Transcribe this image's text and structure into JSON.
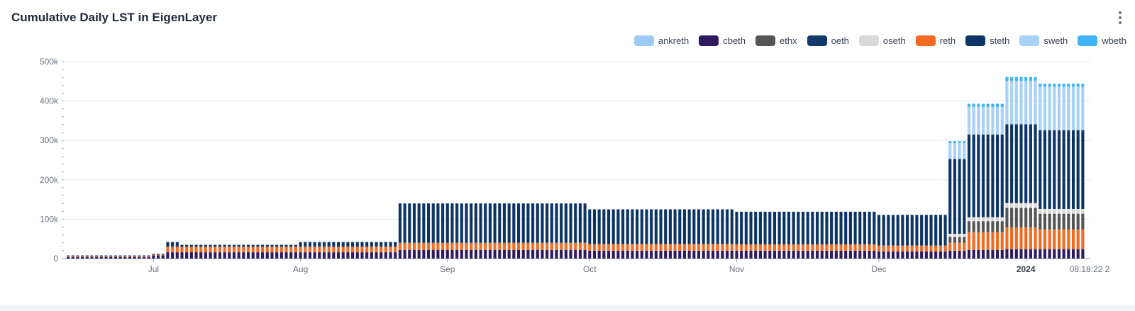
{
  "header": {
    "title": "Cumulative Daily LST in EigenLayer"
  },
  "menu_icon": "more-vertical-icon",
  "chart_data": {
    "type": "bar",
    "stacked": true,
    "title": "Cumulative Daily LST in EigenLayer",
    "xlabel": "",
    "ylabel": "",
    "ylim": [
      0,
      500000
    ],
    "y_ticks": [
      {
        "value": 0,
        "label": "0"
      },
      {
        "value": 100000,
        "label": "100k"
      },
      {
        "value": 200000,
        "label": "200k"
      },
      {
        "value": 300000,
        "label": "300k"
      },
      {
        "value": 400000,
        "label": "400k"
      },
      {
        "value": 500000,
        "label": "500k"
      }
    ],
    "x_range": [
      "2023-06-13",
      "2024-01-13"
    ],
    "x_ticks": [
      {
        "date": "2023-07-01",
        "label": "Jul",
        "bold": false
      },
      {
        "date": "2023-08-01",
        "label": "Aug",
        "bold": false
      },
      {
        "date": "2023-09-01",
        "label": "Sep",
        "bold": false
      },
      {
        "date": "2023-10-01",
        "label": "Oct",
        "bold": false
      },
      {
        "date": "2023-11-01",
        "label": "Nov",
        "bold": false
      },
      {
        "date": "2023-12-01",
        "label": "Dec",
        "bold": false
      },
      {
        "date": "2024-01-01",
        "label": "2024",
        "bold": true
      }
    ],
    "x_end_label": "08:18:22 2",
    "grid": true,
    "legend_position": "top-right",
    "series": [
      {
        "name": "cbeth",
        "color": "#2e1a5e"
      },
      {
        "name": "reth",
        "color": "#f26b21"
      },
      {
        "name": "ethx",
        "color": "#555555"
      },
      {
        "name": "oseth",
        "color": "#d9d9d9"
      },
      {
        "name": "ankreth",
        "color": "#9ecbf5"
      },
      {
        "name": "oeth",
        "color": "#123a6b"
      },
      {
        "name": "steth",
        "color": "#0d3466"
      },
      {
        "name": "sweth",
        "color": "#a8d1f7"
      },
      {
        "name": "wbeth",
        "color": "#41b4f5"
      }
    ],
    "legend_order": [
      "ankreth",
      "cbeth",
      "ethx",
      "oeth",
      "oseth",
      "reth",
      "steth",
      "sweth",
      "wbeth"
    ],
    "segments": [
      {
        "from": "2023-06-13",
        "to": "2023-06-30",
        "values": {
          "cbeth": 4000,
          "reth": 2000,
          "steth": 2000
        }
      },
      {
        "from": "2023-07-01",
        "to": "2023-07-03",
        "values": {
          "cbeth": 8000,
          "reth": 2000,
          "steth": 2000
        }
      },
      {
        "from": "2023-07-04",
        "to": "2023-07-06",
        "values": {
          "cbeth": 16000,
          "reth": 14000,
          "steth": 12000
        }
      },
      {
        "from": "2023-07-07",
        "to": "2023-07-31",
        "values": {
          "cbeth": 16000,
          "reth": 14000,
          "steth": 5000
        }
      },
      {
        "from": "2023-08-01",
        "to": "2023-08-21",
        "values": {
          "cbeth": 16000,
          "reth": 14000,
          "steth": 12000
        }
      },
      {
        "from": "2023-08-22",
        "to": "2023-09-30",
        "values": {
          "cbeth": 22000,
          "reth": 18000,
          "steth": 100000
        }
      },
      {
        "from": "2023-10-01",
        "to": "2023-10-31",
        "values": {
          "cbeth": 20000,
          "reth": 17000,
          "steth": 88000
        }
      },
      {
        "from": "2023-11-01",
        "to": "2023-11-30",
        "values": {
          "cbeth": 20000,
          "reth": 16000,
          "steth": 83000
        }
      },
      {
        "from": "2023-12-01",
        "to": "2023-12-15",
        "values": {
          "cbeth": 18000,
          "reth": 15000,
          "steth": 78000
        }
      },
      {
        "from": "2023-12-16",
        "to": "2023-12-19",
        "values": {
          "cbeth": 20000,
          "ethx": 15000,
          "oseth": 8000,
          "reth": 20000,
          "steth": 190000,
          "sweth": 40000,
          "wbeth": 5000
        }
      },
      {
        "from": "2023-12-20",
        "to": "2023-12-27",
        "values": {
          "cbeth": 22000,
          "ethx": 28000,
          "oseth": 10000,
          "reth": 45000,
          "steth": 210000,
          "sweth": 70000,
          "wbeth": 8000
        }
      },
      {
        "from": "2023-12-28",
        "to": "2024-01-03",
        "values": {
          "cbeth": 24000,
          "ethx": 50000,
          "oseth": 12000,
          "reth": 55000,
          "steth": 200000,
          "sweth": 110000,
          "wbeth": 10000
        }
      },
      {
        "from": "2024-01-04",
        "to": "2024-01-13",
        "values": {
          "cbeth": 24000,
          "ethx": 40000,
          "oseth": 12000,
          "reth": 50000,
          "steth": 200000,
          "sweth": 110000,
          "wbeth": 8000
        }
      }
    ]
  }
}
